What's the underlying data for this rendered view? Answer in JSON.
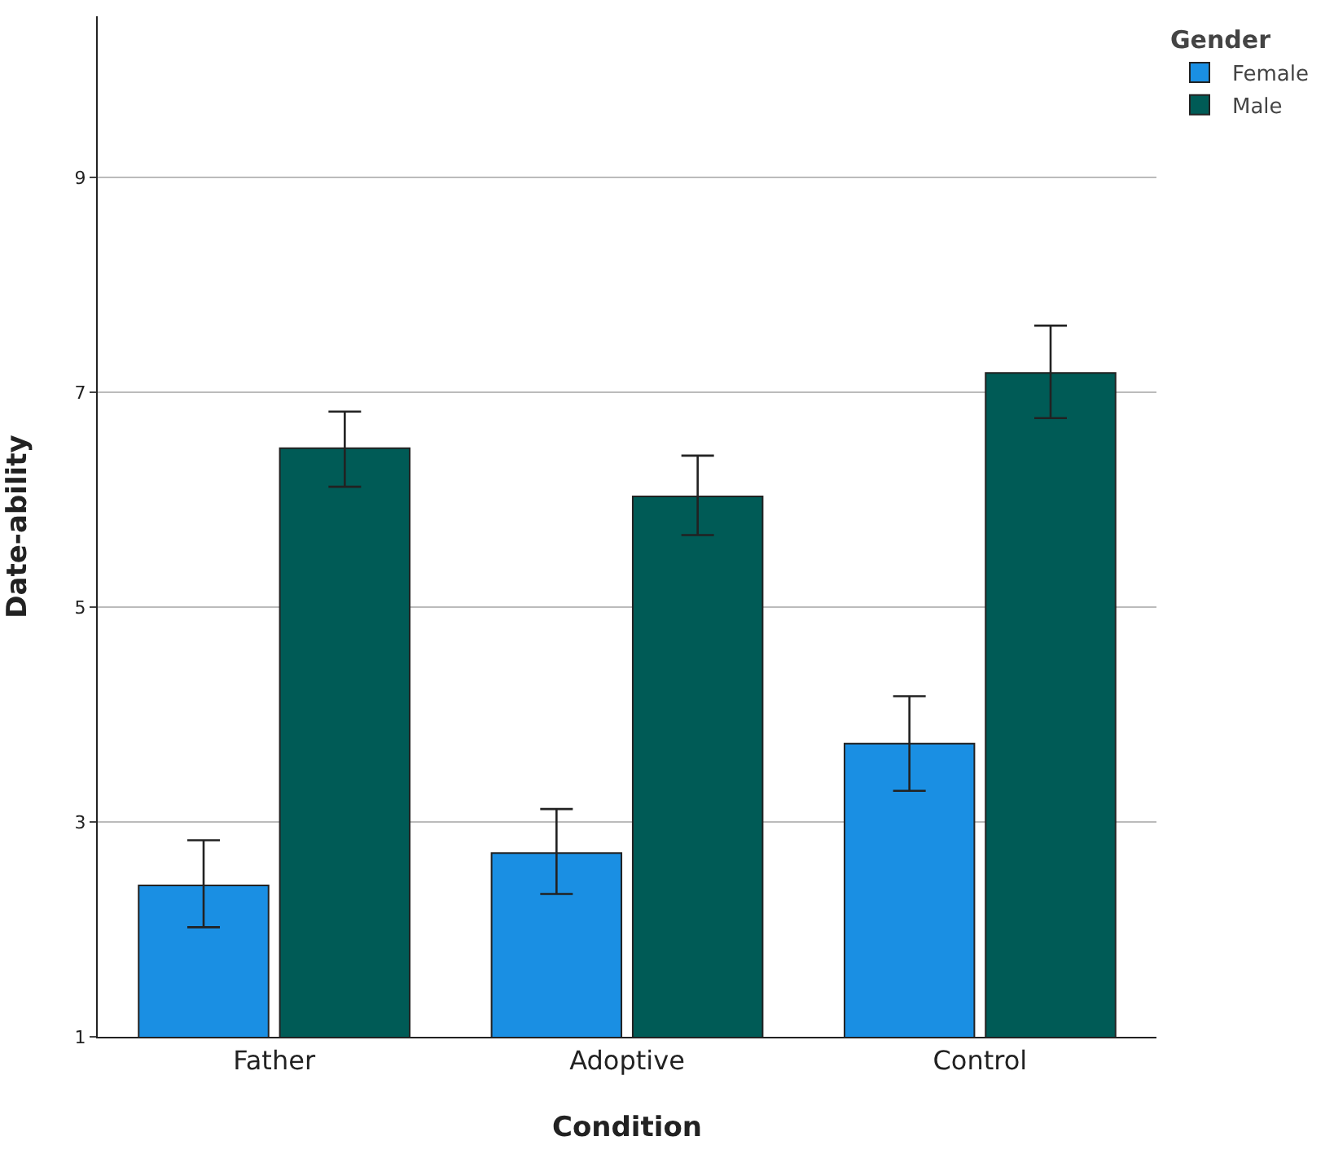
{
  "chart_data": {
    "type": "bar",
    "xlabel": "Condition",
    "ylabel": "Date-ability",
    "legend_title": "Gender",
    "categories": [
      "Father",
      "Adoptive",
      "Control"
    ],
    "series": [
      {
        "name": "Female",
        "color": "#1a8fe3",
        "values": [
          2.41,
          2.71,
          3.73
        ],
        "errors": [
          [
            2.02,
            2.83
          ],
          [
            2.33,
            3.12
          ],
          [
            3.29,
            4.17
          ]
        ]
      },
      {
        "name": "Male",
        "color": "#005b56",
        "values": [
          6.48,
          6.03,
          7.18
        ],
        "errors": [
          [
            6.12,
            6.82
          ],
          [
            5.67,
            6.41
          ],
          [
            6.76,
            7.62
          ]
        ]
      }
    ],
    "ylim": [
      1,
      10.5
    ],
    "yticks": [
      1,
      3,
      5,
      7,
      9
    ],
    "grid": "y",
    "legend": "top right"
  }
}
